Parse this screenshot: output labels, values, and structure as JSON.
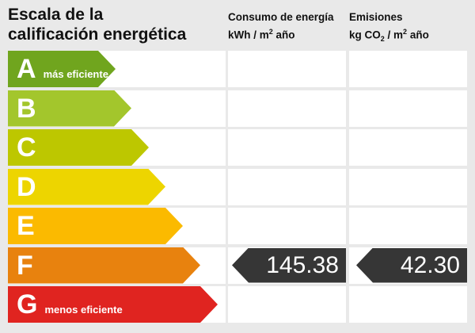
{
  "title": {
    "line1": "Escala de la",
    "line2": "calificación energética"
  },
  "columns": {
    "consumption": {
      "title": "Consumo de energía",
      "unit_a": "kWh / m",
      "unit_sup": "2",
      "unit_b": " año"
    },
    "emissions": {
      "title": "Emisiones",
      "unit_a": "kg CO",
      "unit_sub": "2",
      "unit_b": " / m",
      "unit_sup": "2",
      "unit_c": " año"
    }
  },
  "scale": {
    "bands": [
      {
        "letter": "A",
        "label": "más eficiente",
        "color": "#70a51e",
        "arrow_width": 136
      },
      {
        "letter": "B",
        "label": "",
        "color": "#a3c62c",
        "arrow_width": 156
      },
      {
        "letter": "C",
        "label": "",
        "color": "#bdc700",
        "arrow_width": 178
      },
      {
        "letter": "D",
        "label": "",
        "color": "#edd500",
        "arrow_width": 199
      },
      {
        "letter": "E",
        "label": "",
        "color": "#fbba00",
        "arrow_width": 221
      },
      {
        "letter": "F",
        "label": "",
        "color": "#e8820e",
        "arrow_width": 243
      },
      {
        "letter": "G",
        "label": "menos eficiente",
        "color": "#e02420",
        "arrow_width": 265
      }
    ]
  },
  "result": {
    "band": "F",
    "consumption_value": "145.38",
    "emissions_value": "42.30",
    "arrow_color": "#363636"
  },
  "colors": {
    "background": "#e9e9e9",
    "cell": "#ffffff",
    "text": "#111111"
  },
  "chart_data": {
    "type": "bar",
    "title": "Escala de la calificación energética",
    "categories": [
      "A",
      "B",
      "C",
      "D",
      "E",
      "F",
      "G"
    ],
    "series": [
      {
        "name": "band_arrow_relative_length_px",
        "values": [
          136,
          156,
          178,
          199,
          221,
          243,
          265
        ]
      }
    ],
    "band_colors": [
      "#70a51e",
      "#a3c62c",
      "#bdc700",
      "#edd500",
      "#fbba00",
      "#e8820e",
      "#e02420"
    ],
    "annotations": {
      "A": "más eficiente",
      "G": "menos eficiente"
    },
    "rating": "F",
    "consumption_kwh_m2_year": 145.38,
    "emissions_kgco2_m2_year": 42.3,
    "column_headers": [
      "Consumo de energía kWh/m² año",
      "Emisiones kg CO₂/m² año"
    ],
    "legend_position": "none",
    "grid": false
  }
}
